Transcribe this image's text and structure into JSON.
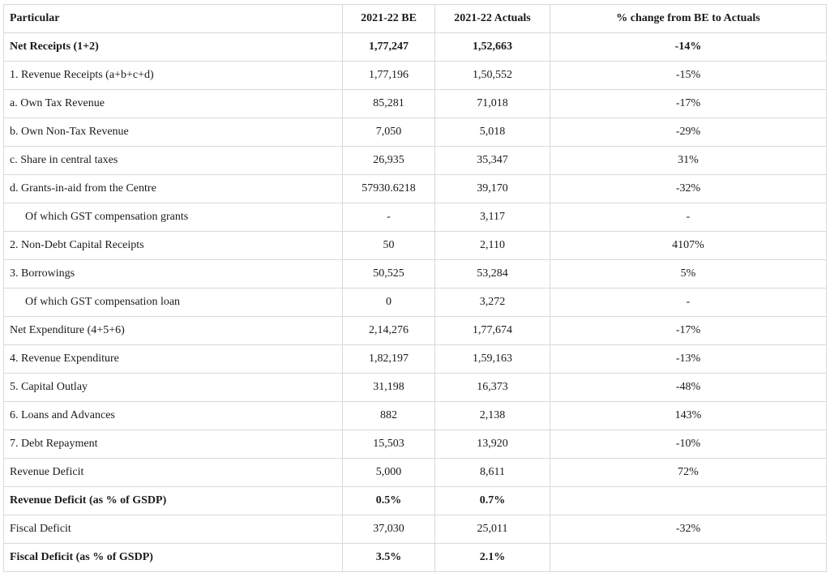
{
  "table": {
    "headers": [
      "Particular",
      "2021-22 BE",
      "2021-22 Actuals",
      "% change from BE to Actuals"
    ],
    "rows": [
      {
        "label": "Net Receipts (1+2)",
        "be": "1,77,247",
        "actuals": "1,52,663",
        "change": "-14%",
        "bold": true,
        "indent": false
      },
      {
        "label": "1. Revenue Receipts (a+b+c+d)",
        "be": "1,77,196",
        "actuals": "1,50,552",
        "change": "-15%",
        "bold": false,
        "indent": false
      },
      {
        "label": "a. Own Tax Revenue",
        "be": "85,281",
        "actuals": "71,018",
        "change": "-17%",
        "bold": false,
        "indent": false
      },
      {
        "label": "b. Own Non-Tax Revenue",
        "be": "7,050",
        "actuals": "5,018",
        "change": "-29%",
        "bold": false,
        "indent": false
      },
      {
        "label": "c. Share in central taxes",
        "be": "26,935",
        "actuals": "35,347",
        "change": "31%",
        "bold": false,
        "indent": false
      },
      {
        "label": "d. Grants-in-aid from the Centre",
        "be": "57930.6218",
        "actuals": "39,170",
        "change": "-32%",
        "bold": false,
        "indent": false
      },
      {
        "label": "Of which GST compensation grants",
        "be": "-",
        "actuals": "3,117",
        "change": "-",
        "bold": false,
        "indent": true
      },
      {
        "label": "2. Non-Debt Capital Receipts",
        "be": "50",
        "actuals": "2,110",
        "change": "4107%",
        "bold": false,
        "indent": false
      },
      {
        "label": "3. Borrowings",
        "be": "50,525",
        "actuals": "53,284",
        "change": "5%",
        "bold": false,
        "indent": false
      },
      {
        "label": "Of which GST compensation loan",
        "be": "0",
        "actuals": "3,272",
        "change": "-",
        "bold": false,
        "indent": true
      },
      {
        "label": "Net Expenditure (4+5+6)",
        "be": "2,14,276",
        "actuals": "1,77,674",
        "change": "-17%",
        "bold": false,
        "indent": false
      },
      {
        "label": "4. Revenue Expenditure",
        "be": "1,82,197",
        "actuals": "1,59,163",
        "change": "-13%",
        "bold": false,
        "indent": false
      },
      {
        "label": "5. Capital Outlay",
        "be": "31,198",
        "actuals": "16,373",
        "change": "-48%",
        "bold": false,
        "indent": false
      },
      {
        "label": "6. Loans and Advances",
        "be": "882",
        "actuals": "2,138",
        "change": "143%",
        "bold": false,
        "indent": false
      },
      {
        "label": "7. Debt Repayment",
        "be": "15,503",
        "actuals": "13,920",
        "change": "-10%",
        "bold": false,
        "indent": false
      },
      {
        "label": "Revenue Deficit",
        "be": "5,000",
        "actuals": "8,611",
        "change": "72%",
        "bold": false,
        "indent": false
      },
      {
        "label": "Revenue Deficit (as % of GSDP)",
        "be": "0.5%",
        "actuals": "0.7%",
        "change": "",
        "bold": true,
        "indent": false
      },
      {
        "label": "Fiscal Deficit",
        "be": "37,030",
        "actuals": "25,011",
        "change": "-32%",
        "bold": false,
        "indent": false
      },
      {
        "label": "Fiscal Deficit (as % of GSDP)",
        "be": "3.5%",
        "actuals": "2.1%",
        "change": "",
        "bold": true,
        "indent": false
      }
    ]
  }
}
